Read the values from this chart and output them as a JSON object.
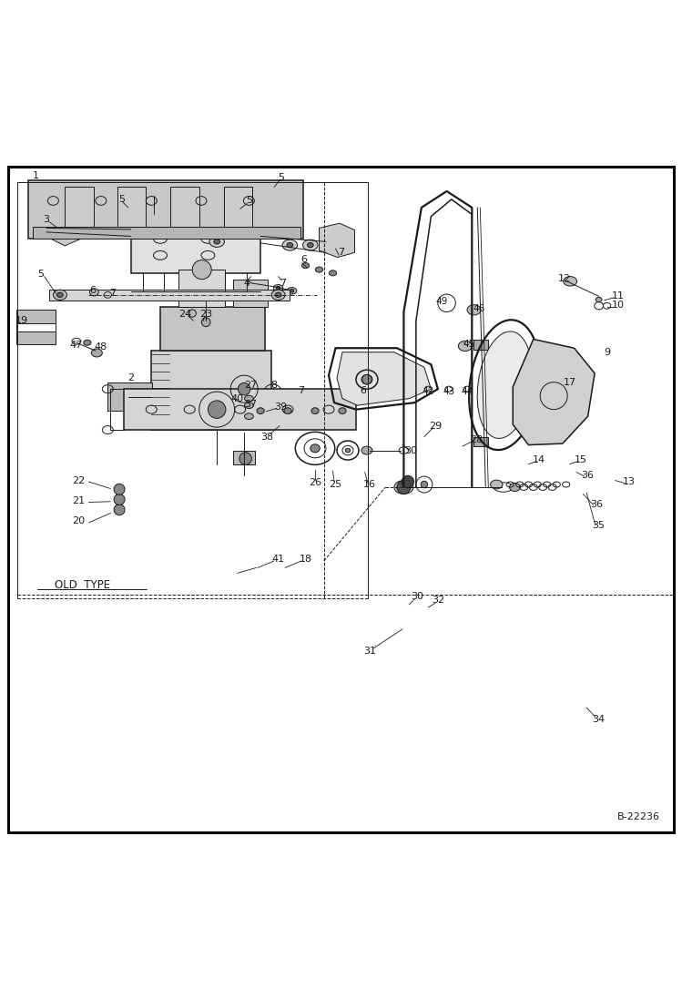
{
  "bg_color": "#ffffff",
  "line_color": "#1a1a1a",
  "watermark": "B-22236",
  "old_type_label": "OLD  TYPE"
}
